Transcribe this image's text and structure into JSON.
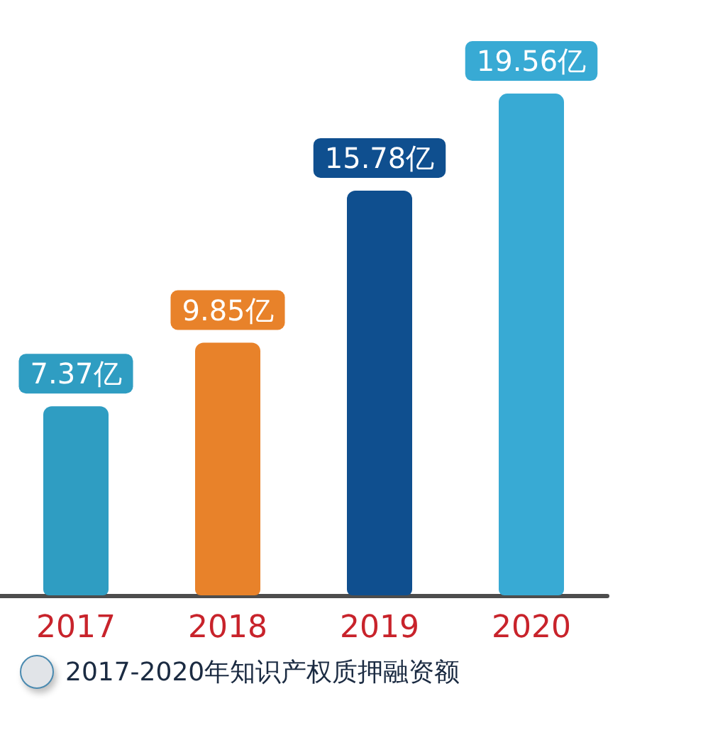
{
  "chart_data": {
    "type": "bar",
    "categories": [
      "2017",
      "2018",
      "2019",
      "2020"
    ],
    "values": [
      7.37,
      9.85,
      15.78,
      19.56
    ],
    "colors": [
      "#2f9dc2",
      "#e8822a",
      "#0f4f8f",
      "#38aad4"
    ],
    "value_labels": [
      "7.37亿",
      "9.85亿",
      "15.78亿",
      "19.56亿"
    ],
    "annotations": [
      "2017-2020年知识产权质押融资额"
    ]
  }
}
